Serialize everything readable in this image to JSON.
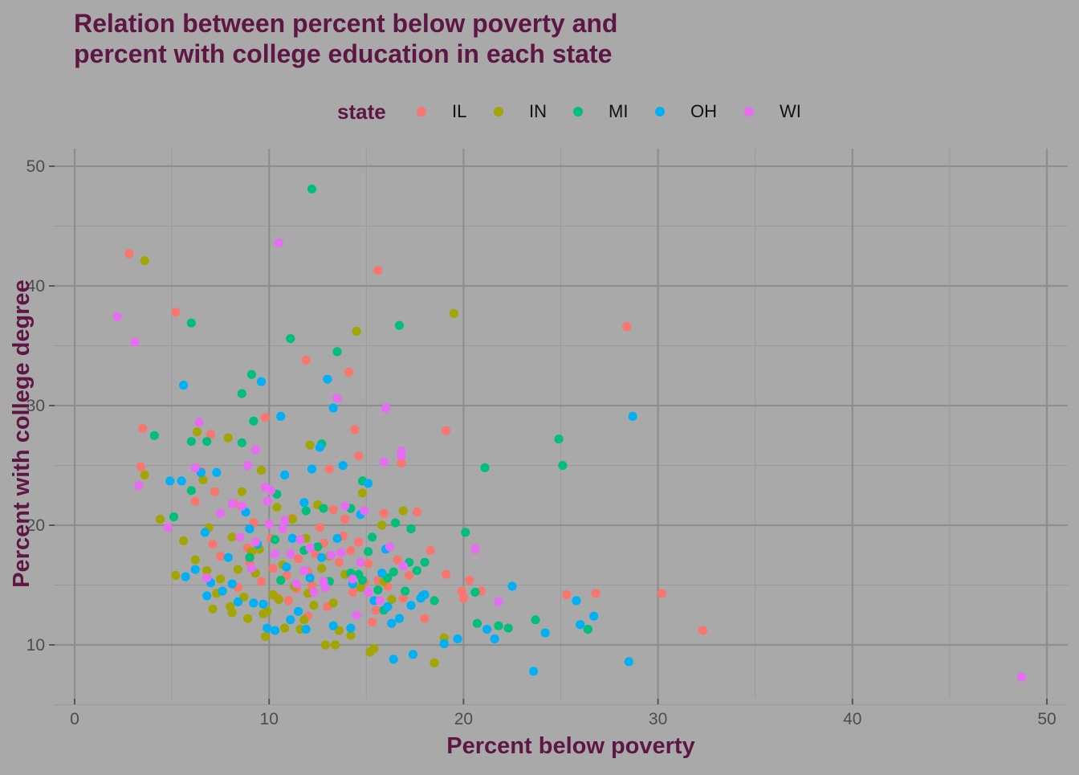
{
  "chart_data": {
    "type": "scatter",
    "title": "Relation between percent below poverty and\npercent with college education in each state",
    "xlabel": "Percent below poverty",
    "ylabel": "Percent with college degree",
    "xlim": [
      0,
      50
    ],
    "ylim": [
      5,
      50
    ],
    "x_ticks": [
      0,
      10,
      20,
      30,
      40,
      50
    ],
    "y_ticks": [
      10,
      20,
      30,
      40,
      50
    ],
    "grid": true,
    "legend": {
      "title": "state",
      "placement": "top"
    },
    "series": [
      {
        "name": "IL",
        "color": "#F8766D",
        "points": [
          [
            2.8,
            42.7
          ],
          [
            5.2,
            37.8
          ],
          [
            3.5,
            28.1
          ],
          [
            3.4,
            24.9
          ],
          [
            6.2,
            22.0
          ],
          [
            7.0,
            27.6
          ],
          [
            7.2,
            22.8
          ],
          [
            8.2,
            21.8
          ],
          [
            9.8,
            29.0
          ],
          [
            11.9,
            33.8
          ],
          [
            14.1,
            32.8
          ],
          [
            15.6,
            41.3
          ],
          [
            14.4,
            28.0
          ],
          [
            13.1,
            24.7
          ],
          [
            14.6,
            25.8
          ],
          [
            16.8,
            25.2
          ],
          [
            17.6,
            21.1
          ],
          [
            19.1,
            27.9
          ],
          [
            19.1,
            15.9
          ],
          [
            20.3,
            15.4
          ],
          [
            20.9,
            14.5
          ],
          [
            19.9,
            14.5
          ],
          [
            20.0,
            13.9
          ],
          [
            18.3,
            17.9
          ],
          [
            18.0,
            12.2
          ],
          [
            15.3,
            11.9
          ],
          [
            28.4,
            36.6
          ],
          [
            25.3,
            14.2
          ],
          [
            26.8,
            14.3
          ],
          [
            30.2,
            14.3
          ],
          [
            32.3,
            11.2
          ],
          [
            10.2,
            16.4
          ],
          [
            10.9,
            15.8
          ],
          [
            11.5,
            17.2
          ],
          [
            12.0,
            16.1
          ],
          [
            12.4,
            17.6
          ],
          [
            12.8,
            18.5
          ],
          [
            13.3,
            21.3
          ],
          [
            13.8,
            19.1
          ],
          [
            14.2,
            17.9
          ],
          [
            14.6,
            18.6
          ],
          [
            15.1,
            16.8
          ],
          [
            15.6,
            15.4
          ],
          [
            16.1,
            14.9
          ],
          [
            16.6,
            17.1
          ],
          [
            17.2,
            15.8
          ],
          [
            11.2,
            20.6
          ],
          [
            12.6,
            19.8
          ],
          [
            13.6,
            16.9
          ],
          [
            9.6,
            15.3
          ],
          [
            8.4,
            14.8
          ],
          [
            7.5,
            17.4
          ],
          [
            9.2,
            20.2
          ],
          [
            8.9,
            18.1
          ],
          [
            10.4,
            14.0
          ],
          [
            11.0,
            13.7
          ],
          [
            13.0,
            13.2
          ],
          [
            14.3,
            14.4
          ],
          [
            15.5,
            12.9
          ],
          [
            16.9,
            13.9
          ],
          [
            12.0,
            12.4
          ],
          [
            11.4,
            14.7
          ],
          [
            10.1,
            18.9
          ],
          [
            13.9,
            20.5
          ],
          [
            15.9,
            21.0
          ],
          [
            7.1,
            18.4
          ],
          [
            6.5,
            24.5
          ],
          [
            9.0,
            16.9
          ],
          [
            12.2,
            15.0
          ],
          [
            14.9,
            15.2
          ]
        ]
      },
      {
        "name": "IN",
        "color": "#A3A500",
        "points": [
          [
            3.6,
            42.1
          ],
          [
            3.6,
            24.2
          ],
          [
            4.4,
            20.5
          ],
          [
            5.2,
            15.8
          ],
          [
            5.6,
            18.7
          ],
          [
            6.3,
            27.8
          ],
          [
            6.2,
            17.1
          ],
          [
            6.6,
            23.8
          ],
          [
            6.9,
            19.8
          ],
          [
            7.5,
            15.5
          ],
          [
            7.9,
            27.3
          ],
          [
            8.1,
            19.0
          ],
          [
            8.6,
            22.8
          ],
          [
            8.1,
            12.7
          ],
          [
            8.7,
            14.0
          ],
          [
            8.9,
            12.2
          ],
          [
            9.3,
            16.0
          ],
          [
            9.6,
            24.6
          ],
          [
            9.5,
            18.0
          ],
          [
            9.8,
            10.7
          ],
          [
            9.9,
            12.8
          ],
          [
            10.5,
            13.8
          ],
          [
            10.8,
            11.4
          ],
          [
            11.2,
            20.5
          ],
          [
            11.6,
            11.3
          ],
          [
            11.8,
            12.1
          ],
          [
            12.0,
            14.3
          ],
          [
            12.1,
            26.7
          ],
          [
            12.5,
            21.7
          ],
          [
            12.9,
            10.0
          ],
          [
            13.1,
            17.4
          ],
          [
            13.4,
            10.0
          ],
          [
            13.6,
            11.2
          ],
          [
            14.2,
            10.8
          ],
          [
            14.5,
            36.2
          ],
          [
            14.8,
            22.7
          ],
          [
            15.2,
            9.4
          ],
          [
            15.4,
            9.7
          ],
          [
            15.8,
            20.0
          ],
          [
            16.3,
            13.8
          ],
          [
            16.9,
            21.2
          ],
          [
            18.5,
            8.5
          ],
          [
            19.0,
            10.6
          ],
          [
            19.5,
            37.7
          ],
          [
            10.7,
            16.7
          ],
          [
            11.3,
            14.9
          ],
          [
            12.7,
            16.4
          ],
          [
            13.9,
            15.9
          ],
          [
            9.1,
            17.8
          ],
          [
            8.4,
            16.3
          ],
          [
            7.3,
            14.3
          ],
          [
            6.8,
            16.2
          ],
          [
            10.2,
            14.2
          ],
          [
            11.9,
            18.9
          ],
          [
            13.3,
            13.5
          ],
          [
            14.7,
            14.8
          ],
          [
            15.9,
            15.3
          ],
          [
            7.1,
            13.0
          ],
          [
            8.0,
            13.2
          ],
          [
            9.7,
            12.6
          ],
          [
            12.3,
            13.3
          ],
          [
            10.4,
            21.5
          ]
        ]
      },
      {
        "name": "MI",
        "color": "#00BF7D",
        "points": [
          [
            12.2,
            48.1
          ],
          [
            6.0,
            36.9
          ],
          [
            4.1,
            27.5
          ],
          [
            5.1,
            20.7
          ],
          [
            6.0,
            22.9
          ],
          [
            6.0,
            27.0
          ],
          [
            6.8,
            27.0
          ],
          [
            8.6,
            31.0
          ],
          [
            8.6,
            26.9
          ],
          [
            9.1,
            32.6
          ],
          [
            9.2,
            28.7
          ],
          [
            10.4,
            22.6
          ],
          [
            11.1,
            35.6
          ],
          [
            11.9,
            21.2
          ],
          [
            12.5,
            18.2
          ],
          [
            12.7,
            26.8
          ],
          [
            13.5,
            34.5
          ],
          [
            14.2,
            21.4
          ],
          [
            14.8,
            23.7
          ],
          [
            14.2,
            16.0
          ],
          [
            14.8,
            15.4
          ],
          [
            15.1,
            17.8
          ],
          [
            15.3,
            19.0
          ],
          [
            15.6,
            14.6
          ],
          [
            16.1,
            15.6
          ],
          [
            16.5,
            20.2
          ],
          [
            16.7,
            36.7
          ],
          [
            17.0,
            14.5
          ],
          [
            17.2,
            16.9
          ],
          [
            17.3,
            19.7
          ],
          [
            17.6,
            16.2
          ],
          [
            18.0,
            16.9
          ],
          [
            18.5,
            13.7
          ],
          [
            20.1,
            19.4
          ],
          [
            20.6,
            14.4
          ],
          [
            20.7,
            11.8
          ],
          [
            21.1,
            24.8
          ],
          [
            21.8,
            11.6
          ],
          [
            22.3,
            11.4
          ],
          [
            23.7,
            12.1
          ],
          [
            24.9,
            27.2
          ],
          [
            25.1,
            25.0
          ],
          [
            26.4,
            11.3
          ],
          [
            10.3,
            18.8
          ],
          [
            11.8,
            17.9
          ],
          [
            13.1,
            15.3
          ],
          [
            16.4,
            16.1
          ],
          [
            17.9,
            14.1
          ],
          [
            15.9,
            12.9
          ],
          [
            12.8,
            21.4
          ],
          [
            14.6,
            15.9
          ],
          [
            9.0,
            17.3
          ],
          [
            10.6,
            15.4
          ]
        ]
      },
      {
        "name": "OH",
        "color": "#00B0F6",
        "points": [
          [
            5.6,
            31.7
          ],
          [
            5.5,
            23.7
          ],
          [
            4.9,
            23.7
          ],
          [
            5.7,
            15.7
          ],
          [
            6.2,
            16.3
          ],
          [
            6.5,
            24.4
          ],
          [
            6.7,
            19.4
          ],
          [
            6.8,
            14.1
          ],
          [
            7.0,
            15.2
          ],
          [
            7.3,
            24.4
          ],
          [
            7.6,
            14.5
          ],
          [
            8.1,
            15.1
          ],
          [
            8.4,
            13.6
          ],
          [
            8.8,
            21.1
          ],
          [
            9.0,
            19.7
          ],
          [
            9.2,
            13.5
          ],
          [
            9.6,
            32.0
          ],
          [
            9.7,
            13.4
          ],
          [
            9.9,
            11.4
          ],
          [
            10.3,
            11.2
          ],
          [
            10.6,
            29.1
          ],
          [
            10.8,
            24.2
          ],
          [
            11.1,
            12.1
          ],
          [
            11.5,
            12.8
          ],
          [
            11.9,
            11.3
          ],
          [
            11.8,
            21.9
          ],
          [
            12.2,
            24.7
          ],
          [
            12.6,
            26.5
          ],
          [
            13.0,
            32.2
          ],
          [
            13.3,
            29.8
          ],
          [
            13.3,
            11.6
          ],
          [
            13.8,
            25.0
          ],
          [
            14.2,
            11.4
          ],
          [
            15.1,
            23.5
          ],
          [
            15.4,
            13.7
          ],
          [
            16.1,
            13.2
          ],
          [
            16.3,
            11.8
          ],
          [
            16.4,
            8.8
          ],
          [
            16.7,
            12.2
          ],
          [
            17.4,
            9.2
          ],
          [
            17.8,
            13.9
          ],
          [
            18.0,
            14.2
          ],
          [
            19.0,
            10.1
          ],
          [
            19.7,
            10.5
          ],
          [
            21.2,
            11.3
          ],
          [
            21.6,
            10.5
          ],
          [
            22.5,
            14.9
          ],
          [
            23.6,
            7.8
          ],
          [
            24.2,
            11.0
          ],
          [
            25.8,
            13.7
          ],
          [
            26.0,
            11.7
          ],
          [
            26.7,
            12.4
          ],
          [
            28.5,
            8.6
          ],
          [
            28.7,
            29.1
          ],
          [
            11.2,
            18.9
          ],
          [
            12.7,
            17.3
          ],
          [
            13.5,
            18.9
          ],
          [
            14.7,
            20.9
          ],
          [
            16.0,
            18.0
          ],
          [
            17.3,
            13.3
          ],
          [
            9.4,
            18.4
          ],
          [
            10.9,
            16.5
          ],
          [
            12.1,
            15.6
          ],
          [
            14.3,
            15.1
          ],
          [
            7.9,
            17.3
          ],
          [
            15.8,
            16.0
          ]
        ]
      },
      {
        "name": "WI",
        "color": "#E76BF3",
        "points": [
          [
            2.2,
            37.4
          ],
          [
            3.1,
            35.3
          ],
          [
            3.3,
            23.3
          ],
          [
            4.8,
            19.8
          ],
          [
            6.2,
            24.8
          ],
          [
            6.4,
            28.6
          ],
          [
            6.8,
            15.6
          ],
          [
            7.5,
            21.0
          ],
          [
            8.1,
            21.8
          ],
          [
            8.6,
            21.6
          ],
          [
            8.9,
            25.0
          ],
          [
            9.1,
            16.4
          ],
          [
            9.3,
            26.3
          ],
          [
            9.8,
            23.2
          ],
          [
            9.9,
            22.0
          ],
          [
            10.1,
            22.9
          ],
          [
            10.3,
            17.6
          ],
          [
            10.5,
            43.6
          ],
          [
            10.7,
            19.7
          ],
          [
            11.1,
            17.6
          ],
          [
            11.6,
            18.8
          ],
          [
            11.8,
            16.2
          ],
          [
            12.3,
            14.4
          ],
          [
            12.8,
            15.3
          ],
          [
            13.2,
            17.5
          ],
          [
            13.5,
            30.6
          ],
          [
            13.9,
            21.6
          ],
          [
            14.3,
            15.5
          ],
          [
            14.5,
            12.5
          ],
          [
            14.9,
            21.2
          ],
          [
            15.1,
            14.4
          ],
          [
            15.9,
            25.3
          ],
          [
            16.0,
            29.8
          ],
          [
            16.2,
            18.2
          ],
          [
            16.8,
            26.2
          ],
          [
            16.8,
            25.8
          ],
          [
            16.9,
            16.6
          ],
          [
            20.6,
            18.0
          ],
          [
            21.8,
            13.6
          ],
          [
            48.7,
            7.3
          ],
          [
            10.0,
            20.1
          ],
          [
            11.4,
            15.1
          ],
          [
            12.9,
            14.8
          ],
          [
            13.7,
            17.7
          ],
          [
            14.7,
            16.9
          ],
          [
            10.8,
            20.4
          ],
          [
            9.3,
            18.6
          ],
          [
            12.1,
            18.1
          ],
          [
            15.7,
            13.7
          ],
          [
            8.5,
            19.0
          ]
        ]
      }
    ]
  }
}
